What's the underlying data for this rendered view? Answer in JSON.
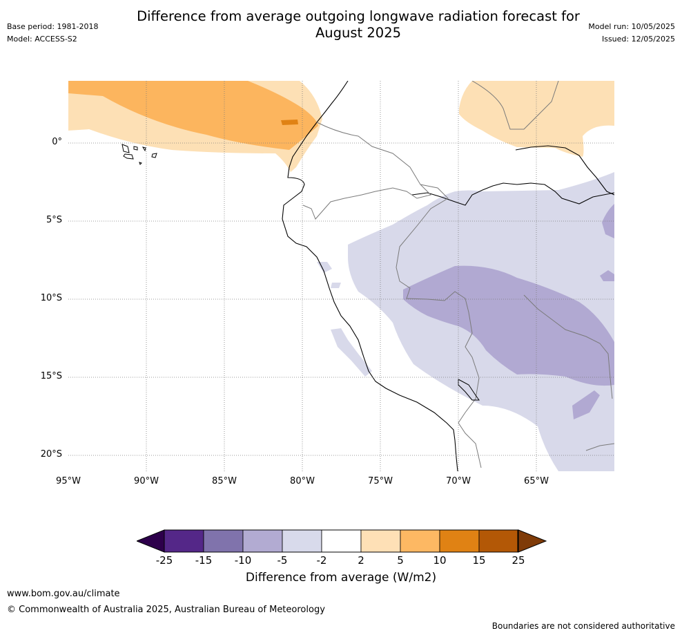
{
  "header": {
    "title_line1": "Difference from average outgoing longwave radiation forecast for",
    "title_line2": "August 2025",
    "base_period": "Base period: 1981-2018",
    "model": "Model: ACCESS-S2",
    "model_run": "Model run: 10/05/2025",
    "issued": "Issued: 12/05/2025"
  },
  "map": {
    "region": "Western South America and eastern Pacific",
    "lon_ticks": [
      "95°W",
      "90°W",
      "85°W",
      "80°W",
      "75°W",
      "70°W",
      "65°W"
    ],
    "lat_ticks": [
      "0°",
      "5°S",
      "10°S",
      "15°S",
      "20°S"
    ],
    "grid": true,
    "fields": [
      {
        "category": "2 to 5",
        "color": "#fde0b5"
      },
      {
        "category": "5 to 10",
        "color": "#fcb55e"
      },
      {
        "category": "10 to 15",
        "color": "#e08214"
      },
      {
        "category": "-5 to -2",
        "color": "#d8d9ea"
      },
      {
        "category": "-10 to -5",
        "color": "#b1a9d2"
      }
    ]
  },
  "colorbar": {
    "title": "Difference from average (W/m2)",
    "labels": [
      "-25",
      "-15",
      "-10",
      "-5",
      "-2",
      "2",
      "5",
      "10",
      "15",
      "25"
    ],
    "colors": [
      "#2d004b",
      "#542788",
      "#8073ac",
      "#b2abd2",
      "#d8daeb",
      "#ffffff",
      "#fee0b6",
      "#fdb863",
      "#e08214",
      "#b35806",
      "#7f3b08"
    ]
  },
  "footer": {
    "website": "www.bom.gov.au/climate",
    "copyright": "© Commonwealth of Australia 2025, Australian Bureau of Meteorology",
    "disclaimer": "Boundaries are not considered authoritative"
  }
}
